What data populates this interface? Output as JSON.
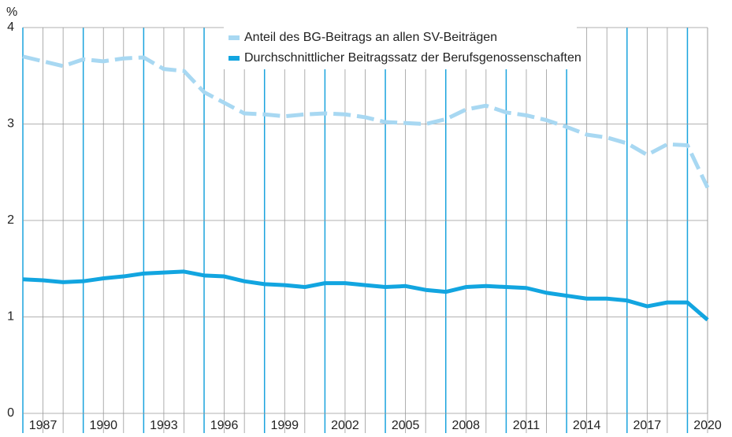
{
  "chart_data": {
    "type": "line",
    "y_label": "%",
    "x": [
      1986,
      1987,
      1988,
      1989,
      1990,
      1991,
      1992,
      1993,
      1994,
      1995,
      1996,
      1997,
      1998,
      1999,
      2000,
      2001,
      2002,
      2003,
      2004,
      2005,
      2006,
      2007,
      2008,
      2009,
      2010,
      2011,
      2012,
      2013,
      2014,
      2015,
      2016,
      2017,
      2018,
      2019,
      2020
    ],
    "series": [
      {
        "name": "Anteil des BG-Beitrags an allen SV-Beiträgen",
        "color": "#a8d8f2",
        "dashed": true,
        "values": [
          3.7,
          3.65,
          3.6,
          3.67,
          3.65,
          3.68,
          3.69,
          3.57,
          3.55,
          3.33,
          3.22,
          3.11,
          3.1,
          3.08,
          3.1,
          3.11,
          3.1,
          3.07,
          3.02,
          3.01,
          3.0,
          3.05,
          3.15,
          3.19,
          3.12,
          3.09,
          3.04,
          2.97,
          2.89,
          2.86,
          2.8,
          2.68,
          2.79,
          2.78,
          2.34
        ]
      },
      {
        "name": "Durchschnittlicher Beitragssatz der Berufsgenossenschaften",
        "color": "#12a5e0",
        "dashed": false,
        "values": [
          1.39,
          1.38,
          1.36,
          1.37,
          1.4,
          1.42,
          1.45,
          1.46,
          1.47,
          1.43,
          1.42,
          1.37,
          1.34,
          1.33,
          1.31,
          1.35,
          1.35,
          1.33,
          1.31,
          1.32,
          1.28,
          1.26,
          1.31,
          1.32,
          1.31,
          1.3,
          1.25,
          1.22,
          1.19,
          1.19,
          1.17,
          1.11,
          1.15,
          1.15,
          0.97
        ]
      }
    ],
    "xlim": [
      1986,
      2020
    ],
    "xticks": [
      1987,
      1990,
      1993,
      1996,
      1999,
      2002,
      2005,
      2008,
      2011,
      2014,
      2017,
      2020
    ],
    "ylim": [
      0,
      4
    ],
    "yticks": [
      0,
      1,
      2,
      3,
      4
    ],
    "grid": true
  }
}
